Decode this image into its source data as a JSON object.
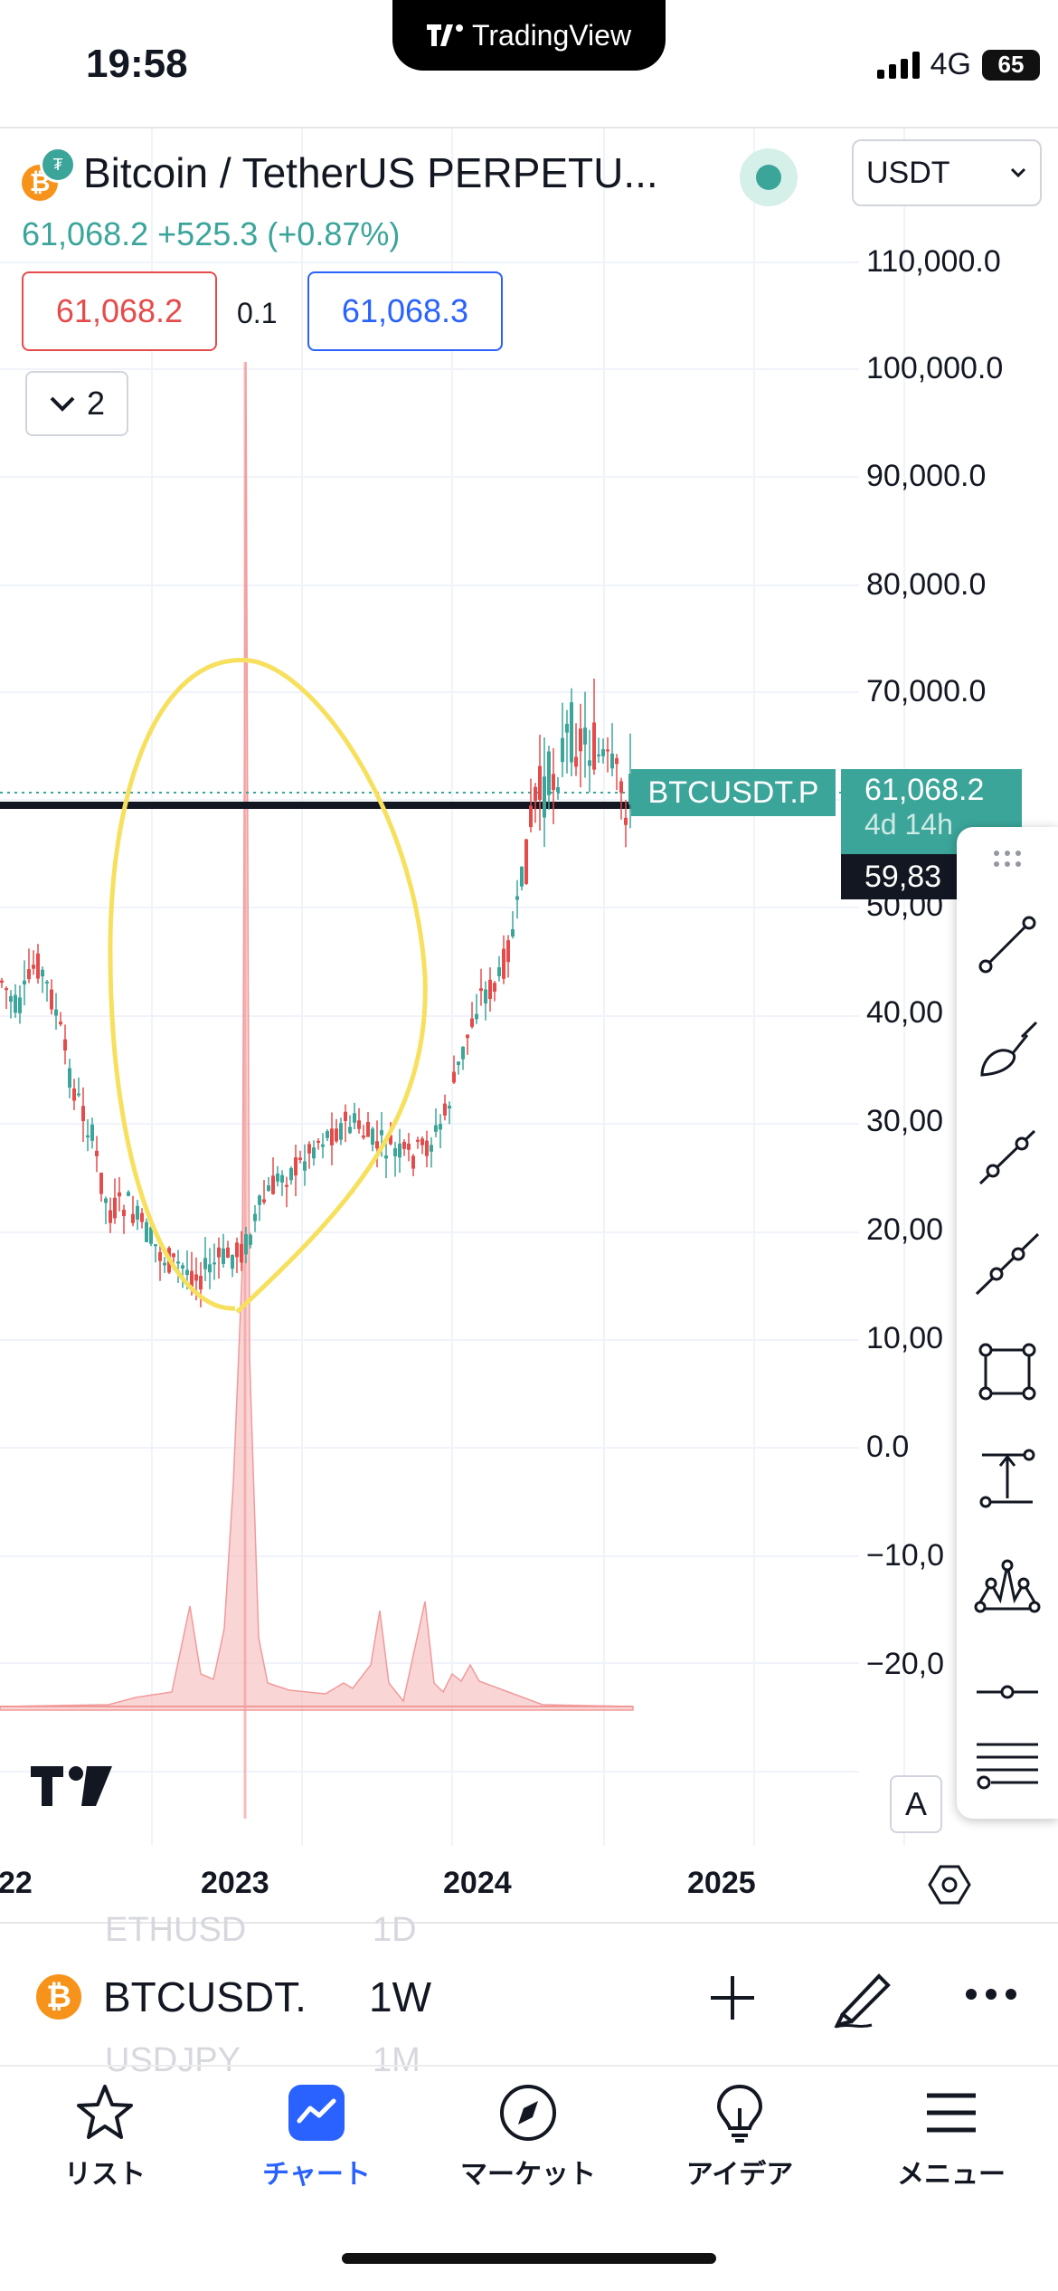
{
  "status_bar": {
    "time": "19:58",
    "notch_brand": "TradingView",
    "network": "4G",
    "battery": "65"
  },
  "header": {
    "symbol_title": "Bitcoin / TetherUS PERPETU...",
    "currency": "USDT",
    "price": "61,068.2",
    "change": "+525.3",
    "change_pct": "(+0.87%)",
    "sell_price": "61,068.2",
    "spread": "0.1",
    "buy_price": "61,068.3",
    "indicator_count": "2"
  },
  "price_axis": [
    "110,000.0",
    "100,000.0",
    "90,000.0",
    "80,000.0",
    "70,000.0",
    "50,00",
    "40,00",
    "30,00",
    "20,00",
    "10,00",
    "0.0",
    "−10,0",
    "−20,0"
  ],
  "time_axis": [
    "22",
    "2023",
    "2024",
    "2025"
  ],
  "price_tags": {
    "symbol": "BTCUSDT.P",
    "last_price": "61,068.2",
    "countdown": "4d 14h",
    "level": "59,83"
  },
  "auto_scale_label": "A",
  "symbol_bar": {
    "ghost_above": [
      "ETHUSD",
      "1D"
    ],
    "ghost_below": [
      "USDJPY",
      "1M"
    ],
    "symbol": "BTCUSDT.",
    "interval": "1W"
  },
  "nav": [
    {
      "label": "リスト",
      "icon": "star-icon",
      "active": false
    },
    {
      "label": "チャート",
      "icon": "chart-icon",
      "active": true
    },
    {
      "label": "マーケット",
      "icon": "compass-icon",
      "active": false
    },
    {
      "label": "アイデア",
      "icon": "lightbulb-icon",
      "active": false
    },
    {
      "label": "メニュー",
      "icon": "menu-icon",
      "active": false
    }
  ],
  "colors": {
    "up": "#3ba59a",
    "down": "#e54b4b",
    "accent": "#2962ff",
    "annotation": "#f6e05e"
  }
}
